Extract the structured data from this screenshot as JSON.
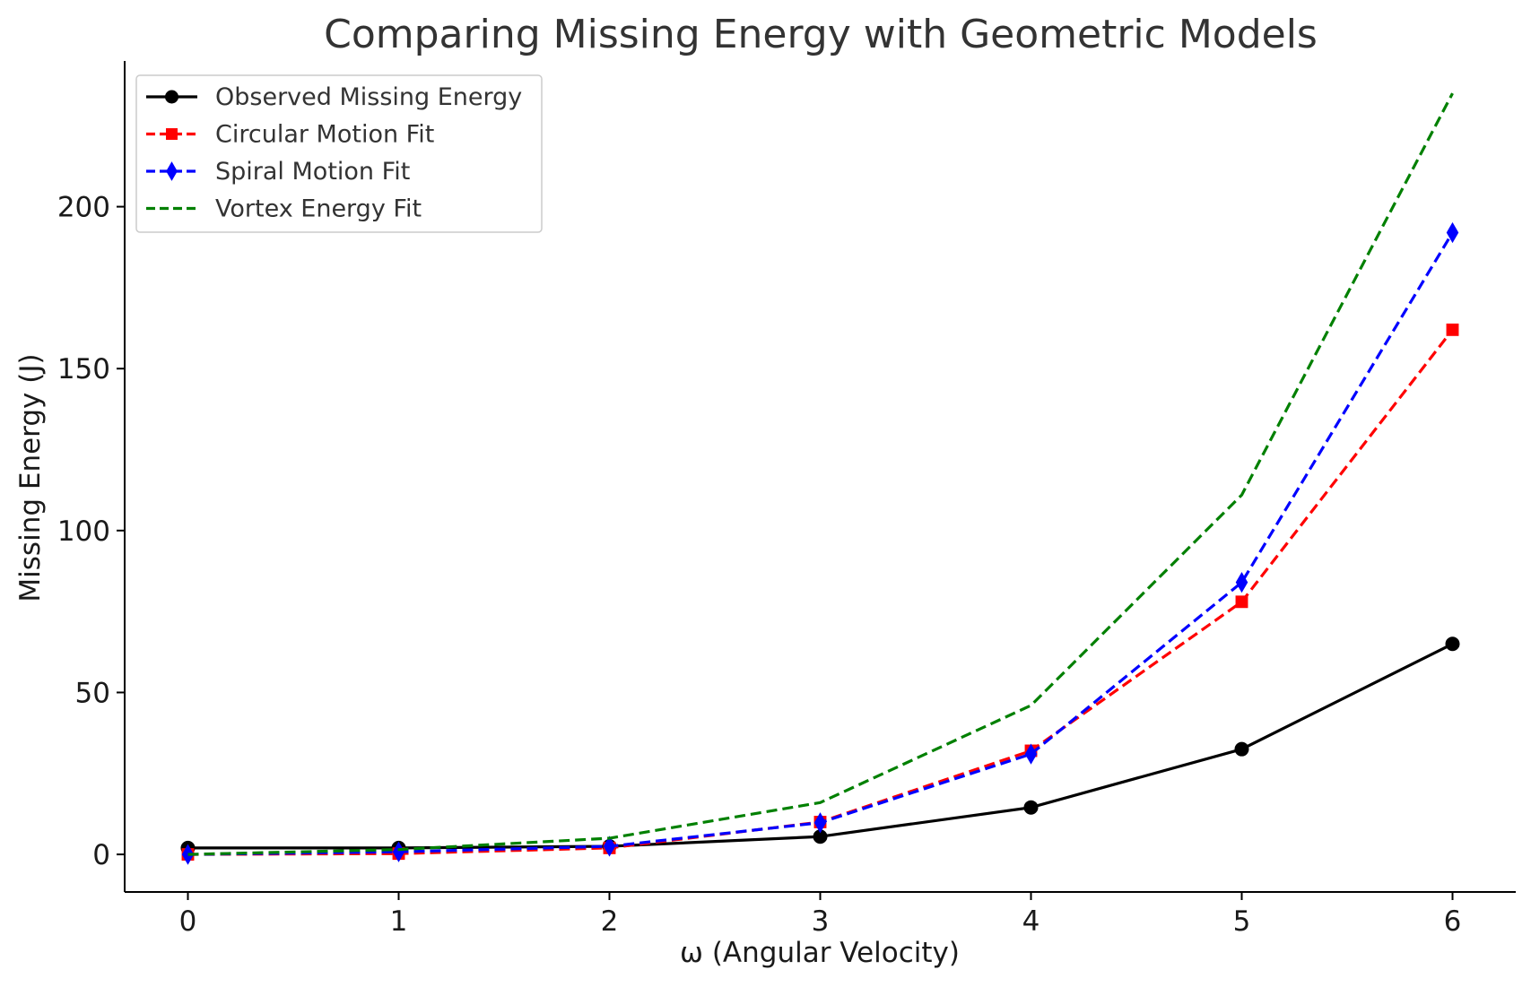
{
  "chart_data": {
    "type": "line",
    "title": "Comparing Missing Energy with Geometric Models",
    "xlabel": "ω (Angular Velocity)",
    "ylabel": "Missing Energy (J)",
    "x": [
      0,
      1,
      2,
      3,
      4,
      5,
      6
    ],
    "xticks": [
      0,
      1,
      2,
      3,
      4,
      5,
      6
    ],
    "yticks": [
      0,
      50,
      100,
      150,
      200
    ],
    "xlim": [
      -0.3,
      6.3
    ],
    "ylim": [
      -11.6,
      245
    ],
    "grid": false,
    "legend_position": "upper left",
    "series": [
      {
        "name": "Observed Missing Energy",
        "values": [
          2,
          2,
          2.5,
          5.5,
          14.5,
          32.5,
          65
        ],
        "color": "#000000",
        "line_style": "solid",
        "marker": "circle"
      },
      {
        "name": "Circular Motion Fit",
        "values": [
          0,
          0.25,
          2,
          10,
          32,
          78,
          162
        ],
        "color": "#ff0000",
        "line_style": "dashed",
        "marker": "square"
      },
      {
        "name": "Spiral Motion Fit",
        "values": [
          0,
          0.8,
          2.5,
          9.8,
          31,
          84,
          192
        ],
        "color": "#0000ff",
        "line_style": "dashed",
        "marker": "diamond"
      },
      {
        "name": "Vortex Energy Fit",
        "values": [
          0,
          1.5,
          5,
          16,
          46,
          111,
          235
        ],
        "color": "#008000",
        "line_style": "dashed",
        "marker": "none"
      }
    ]
  }
}
